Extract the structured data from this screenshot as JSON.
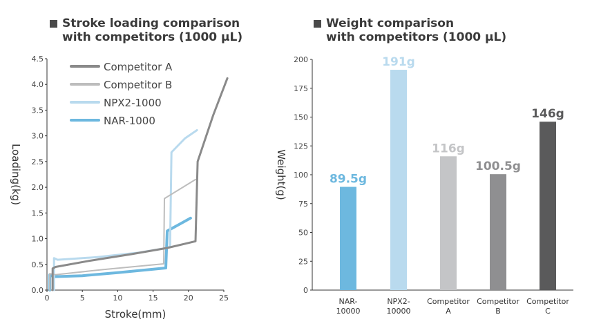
{
  "left_panel": {
    "title_line1": "Stroke loading comparison",
    "title_line2": "with competitors (1000 µL)"
  },
  "right_panel": {
    "title_line1": "Weight comparison",
    "title_line2": "with competitors (1000 µL)"
  },
  "chart_data": [
    {
      "type": "line",
      "title": "Stroke loading comparison with competitors (1000 µL)",
      "xlabel": "Stroke(mm)",
      "ylabel": "Loading(kg)",
      "xlim": [
        0,
        25
      ],
      "ylim": [
        0,
        4.5
      ],
      "xticks": [
        "0",
        "5",
        "10",
        "15",
        "20",
        "25"
      ],
      "yticks": [
        "0.0",
        "0.5",
        "1.0",
        "1.5",
        "2.0",
        "2.5",
        "3.0",
        "3.5",
        "4.0",
        "4.5"
      ],
      "legend_position": "top-left",
      "series": [
        {
          "name": "Competitor A",
          "color": "#8a8a8a",
          "width": "3",
          "points": [
            [
              0.8,
              0.0
            ],
            [
              0.8,
              0.42
            ],
            [
              1.2,
              0.45
            ],
            [
              6,
              0.57
            ],
            [
              12,
              0.7
            ],
            [
              17,
              0.82
            ],
            [
              21,
              0.95
            ],
            [
              21.3,
              2.5
            ],
            [
              23.5,
              3.4
            ],
            [
              25.5,
              4.12
            ]
          ]
        },
        {
          "name": "Competitor B",
          "color": "#bdbdbd",
          "width": "2",
          "points": [
            [
              0.4,
              0.0
            ],
            [
              0.4,
              0.32
            ],
            [
              1.2,
              0.3
            ],
            [
              8,
              0.4
            ],
            [
              16.5,
              0.51
            ],
            [
              16.6,
              1.78
            ],
            [
              21,
              2.15
            ]
          ]
        },
        {
          "name": "NPX2-1000",
          "color": "#b9daee",
          "width": "3",
          "points": [
            [
              1.0,
              0.0
            ],
            [
              1.0,
              0.62
            ],
            [
              1.5,
              0.59
            ],
            [
              7,
              0.64
            ],
            [
              13,
              0.73
            ],
            [
              17,
              0.82
            ],
            [
              17.4,
              0.85
            ],
            [
              17.6,
              2.68
            ],
            [
              19.5,
              2.95
            ],
            [
              21.2,
              3.11
            ]
          ]
        },
        {
          "name": "NAR-1000",
          "color": "#6db8df",
          "width": "4",
          "points": [
            [
              0.4,
              0.0
            ],
            [
              0.4,
              0.3
            ],
            [
              0.9,
              0.26
            ],
            [
              5,
              0.28
            ],
            [
              10,
              0.34
            ],
            [
              16.8,
              0.43
            ],
            [
              17.0,
              1.15
            ],
            [
              20.3,
              1.4
            ]
          ]
        }
      ]
    },
    {
      "type": "bar",
      "title": "Weight comparison with competitors (1000 µL)",
      "ylabel": "Weight(g)",
      "ylim": [
        0,
        200
      ],
      "yticks": [
        "0",
        "25",
        "50",
        "75",
        "100",
        "125",
        "150",
        "175",
        "200"
      ],
      "categories": [
        {
          "line1": "NAR-",
          "line2": "10000"
        },
        {
          "line1": "NPX2-",
          "line2": "10000"
        },
        {
          "line1": "Competitor",
          "line2": "A"
        },
        {
          "line1": "Competitor",
          "line2": "B"
        },
        {
          "line1": "Competitor",
          "line2": "C"
        }
      ],
      "values": [
        89.5,
        191,
        116,
        100.5,
        146
      ],
      "labels": [
        "89.5g",
        "191g",
        "116g",
        "100.5g",
        "146g"
      ],
      "colors": [
        "#6db8df",
        "#b9daee",
        "#c4c5c7",
        "#8f8f91",
        "#5a5a5b"
      ]
    }
  ]
}
